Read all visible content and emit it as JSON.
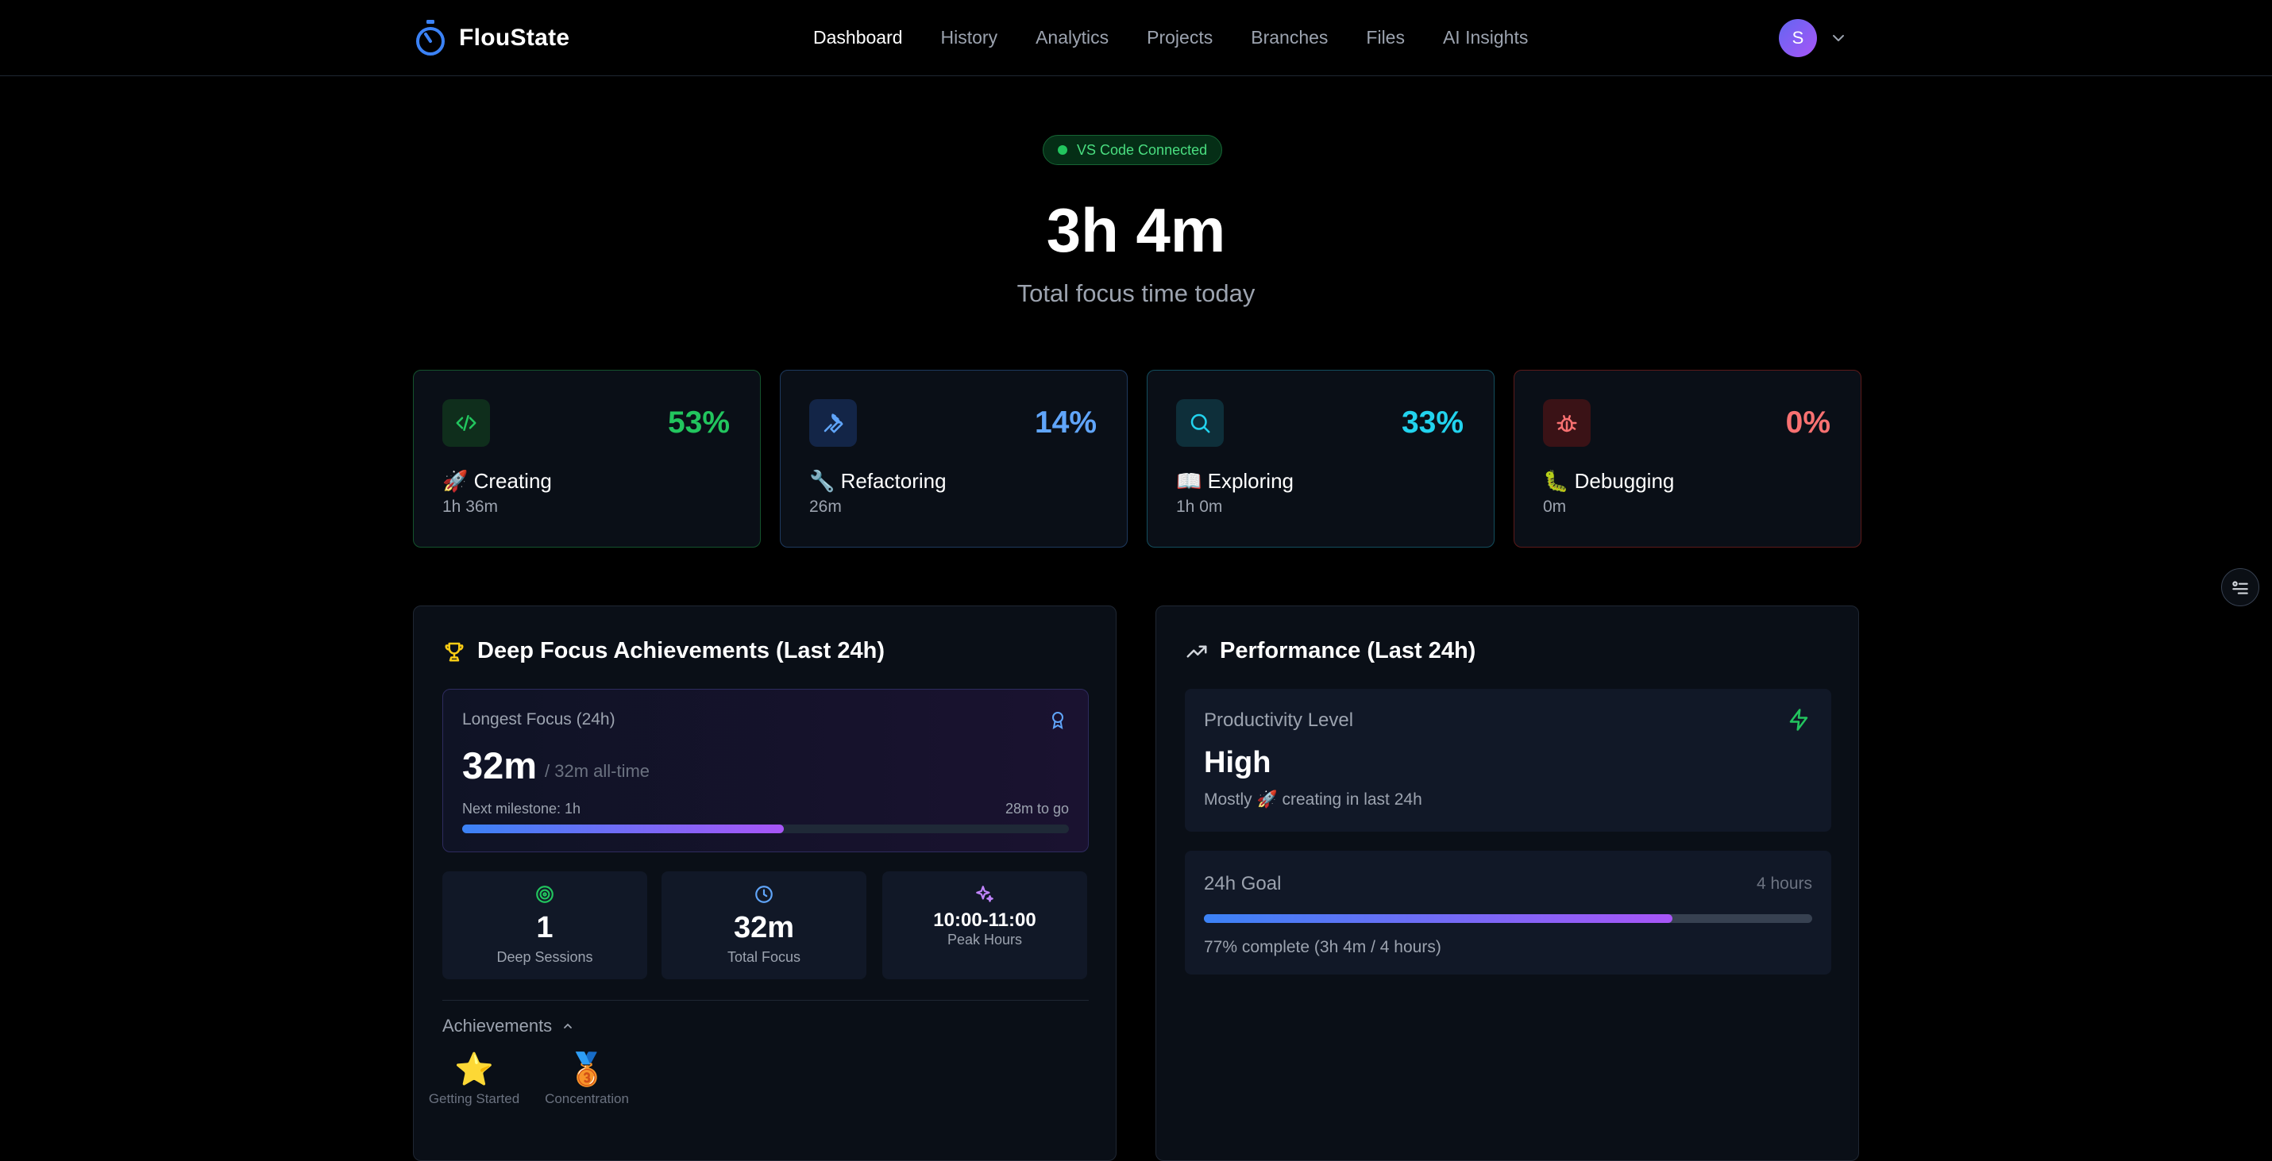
{
  "app": {
    "name": "FlouState"
  },
  "nav": {
    "items": [
      {
        "label": "Dashboard"
      },
      {
        "label": "History"
      },
      {
        "label": "Analytics"
      },
      {
        "label": "Projects"
      },
      {
        "label": "Branches"
      },
      {
        "label": "Files"
      },
      {
        "label": "AI Insights"
      }
    ],
    "active": "Dashboard"
  },
  "user": {
    "initial": "S"
  },
  "status": {
    "label": "VS Code Connected",
    "color": "#22c55e"
  },
  "hero": {
    "total_time": "3h 4m",
    "subtitle": "Total focus time today"
  },
  "categories": [
    {
      "label": "🚀 Creating",
      "percent": "53%",
      "time": "1h 36m",
      "icon": "code-icon",
      "color": "#22c55e"
    },
    {
      "label": "🔧 Refactoring",
      "percent": "14%",
      "time": "26m",
      "icon": "wrench-icon",
      "color": "#60a5fa"
    },
    {
      "label": "📖 Exploring",
      "percent": "33%",
      "time": "1h 0m",
      "icon": "search-icon",
      "color": "#22d3ee"
    },
    {
      "label": "🐛 Debugging",
      "percent": "0%",
      "time": "0m",
      "icon": "bug-icon",
      "color": "#f87171"
    }
  ],
  "deep_focus": {
    "title": "Deep Focus Achievements (Last 24h)",
    "longest_label": "Longest Focus (24h)",
    "longest_value": "32m",
    "all_time": "/ 32m all-time",
    "milestone": "Next milestone: 1h",
    "to_go": "28m to go",
    "milestone_progress": 0.53,
    "stats": [
      {
        "value": "1",
        "label": "Deep Sessions",
        "icon": "target-icon"
      },
      {
        "value": "32m",
        "label": "Total Focus",
        "icon": "clock-icon"
      },
      {
        "value": "10:00-11:00",
        "label": "Peak Hours",
        "icon": "sparkles-icon"
      }
    ],
    "achievements_title": "Achievements",
    "achievements": [
      {
        "emoji": "⭐",
        "label": "Getting Started"
      },
      {
        "emoji": "🥉",
        "label": "Concentration"
      }
    ]
  },
  "performance": {
    "title": "Performance (Last 24h)",
    "productivity_label": "Productivity Level",
    "productivity_value": "High",
    "productivity_desc": "Mostly 🚀 creating in last 24h",
    "goal_label": "24h Goal",
    "goal_target": "4 hours",
    "goal_progress": 0.77,
    "goal_desc": "77% complete (3h 4m / 4 hours)"
  }
}
